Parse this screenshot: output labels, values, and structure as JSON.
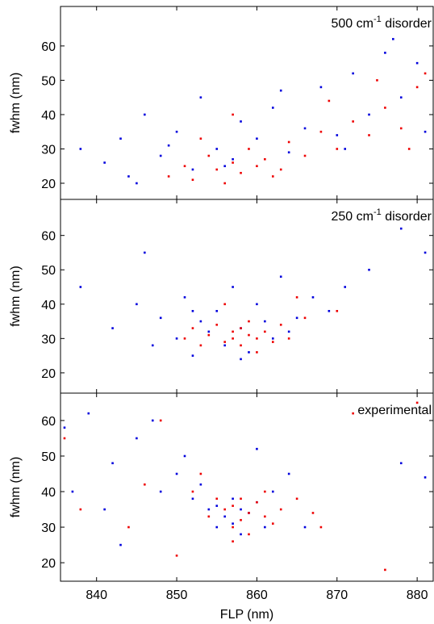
{
  "chart_data": [
    {
      "type": "scatter",
      "annotation": [
        "500 cm",
        "-1",
        " disorder"
      ],
      "ylabel": "fwhm (nm)",
      "xlim": [
        835.5,
        882
      ],
      "xticks": [
        840,
        850,
        860,
        870,
        880
      ],
      "ylim": [
        15.3,
        71.5
      ],
      "yticks": [
        20,
        30,
        40,
        50,
        60
      ],
      "series": [
        {
          "color": "#0000dd",
          "x": [
            838,
            841,
            844,
            846,
            848,
            850,
            852,
            853,
            855,
            857,
            858,
            860,
            862,
            864,
            866,
            868,
            870,
            872,
            874,
            876,
            878,
            880,
            881,
            843,
            849,
            856,
            863,
            871,
            877,
            845
          ],
          "values": [
            30,
            26,
            22,
            40,
            28,
            35,
            24,
            45,
            30,
            27,
            38,
            33,
            42,
            29,
            36,
            48,
            34,
            52,
            40,
            58,
            45,
            55,
            35,
            33,
            31,
            25,
            47,
            30,
            62,
            20
          ]
        },
        {
          "color": "#ee0000",
          "x": [
            849,
            851,
            852,
            854,
            855,
            856,
            857,
            858,
            859,
            860,
            861,
            862,
            864,
            866,
            868,
            870,
            872,
            874,
            876,
            878,
            880,
            881,
            853,
            857,
            863,
            869,
            875,
            879
          ],
          "values": [
            22,
            25,
            21,
            28,
            24,
            20,
            26,
            23,
            30,
            25,
            27,
            22,
            32,
            28,
            35,
            30,
            38,
            34,
            42,
            36,
            48,
            52,
            33,
            40,
            24,
            44,
            50,
            30
          ]
        }
      ]
    },
    {
      "type": "scatter",
      "annotation": [
        "250 cm",
        "-1",
        " disorder"
      ],
      "ylabel": "fwhm (nm)",
      "xlim": [
        835.5,
        882
      ],
      "xticks": [
        840,
        850,
        860,
        870,
        880
      ],
      "ylim": [
        14.1,
        70.5
      ],
      "yticks": [
        20,
        30,
        40,
        50,
        60
      ],
      "series": [
        {
          "color": "#0000dd",
          "x": [
            838,
            842,
            845,
            847,
            848,
            850,
            851,
            852,
            853,
            854,
            855,
            856,
            857,
            858,
            859,
            860,
            861,
            862,
            863,
            865,
            867,
            869,
            871,
            874,
            878,
            881,
            846,
            852,
            858,
            864
          ],
          "values": [
            45,
            33,
            40,
            28,
            36,
            30,
            42,
            25,
            35,
            32,
            38,
            28,
            45,
            33,
            26,
            40,
            35,
            30,
            48,
            36,
            42,
            38,
            45,
            50,
            62,
            55,
            55,
            38,
            24,
            32
          ]
        },
        {
          "color": "#ee0000",
          "x": [
            851,
            852,
            853,
            854,
            855,
            856,
            857,
            857,
            858,
            858,
            859,
            859,
            860,
            861,
            862,
            863,
            864,
            866,
            856,
            860,
            865,
            870
          ],
          "values": [
            30,
            33,
            28,
            31,
            34,
            29,
            32,
            30,
            28,
            33,
            31,
            35,
            30,
            32,
            29,
            34,
            30,
            36,
            40,
            26,
            42,
            38
          ]
        }
      ]
    },
    {
      "type": "scatter",
      "annotation": [
        "experimental"
      ],
      "ylabel": "fwhm (nm)",
      "xlabel": "FLP (nm)",
      "xlim": [
        835.5,
        882
      ],
      "xticks": [
        840,
        850,
        860,
        870,
        880
      ],
      "ylim": [
        14.8,
        67.7
      ],
      "yticks": [
        20,
        30,
        40,
        50,
        60
      ],
      "series": [
        {
          "color": "#0000dd",
          "x": [
            836,
            839,
            842,
            845,
            848,
            850,
            852,
            853,
            854,
            855,
            856,
            857,
            857,
            858,
            858,
            859,
            860,
            861,
            862,
            864,
            866,
            878,
            881,
            841,
            847,
            851,
            855,
            860,
            843,
            837
          ],
          "values": [
            58,
            62,
            48,
            55,
            40,
            45,
            38,
            42,
            35,
            36,
            33,
            38,
            31,
            35,
            28,
            34,
            37,
            30,
            40,
            45,
            30,
            48,
            44,
            35,
            60,
            50,
            30,
            52,
            25,
            40
          ]
        },
        {
          "color": "#ee0000",
          "x": [
            836,
            838,
            844,
            848,
            850,
            852,
            854,
            855,
            856,
            857,
            857,
            858,
            858,
            859,
            859,
            860,
            861,
            862,
            863,
            865,
            868,
            872,
            876,
            880,
            846,
            853,
            857,
            861,
            867
          ],
          "values": [
            55,
            35,
            30,
            60,
            22,
            40,
            33,
            38,
            35,
            30,
            36,
            32,
            38,
            34,
            28,
            37,
            33,
            31,
            35,
            38,
            30,
            62,
            18,
            65,
            42,
            45,
            26,
            40,
            34
          ]
        }
      ]
    }
  ]
}
